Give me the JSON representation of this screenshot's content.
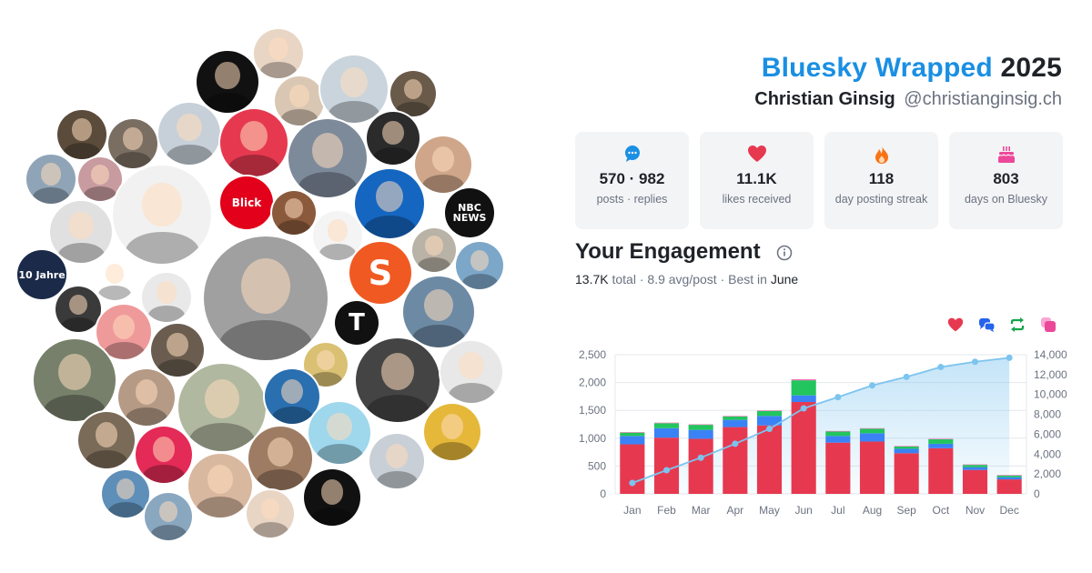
{
  "header": {
    "brand": "Bluesky Wrapped",
    "year": "2025",
    "name": "Christian Ginsig",
    "handle": "@christianginsig.ch"
  },
  "stats": [
    {
      "value": "570 · 982",
      "label": "posts · replies",
      "icon": "speech-bubble-icon",
      "color": "#1a8fe3"
    },
    {
      "value": "11.1K",
      "label": "likes received",
      "icon": "heart-icon",
      "color": "#e63950"
    },
    {
      "value": "118",
      "label": "day posting streak",
      "icon": "flame-icon",
      "color": "#f97316"
    },
    {
      "value": "803",
      "label": "days on Bluesky",
      "icon": "cake-icon",
      "color": "#ec4899"
    }
  ],
  "engagement": {
    "title": "Your Engagement",
    "total": "13.7K",
    "total_word": "total",
    "avg": "8.9 avg/post",
    "best_prefix": "Best in",
    "best_month": "June",
    "legend": [
      {
        "icon": "heart-icon",
        "color": "#e63950"
      },
      {
        "icon": "reply-icon",
        "color": "#2563eb"
      },
      {
        "icon": "repost-icon",
        "color": "#16a34a"
      },
      {
        "icon": "quote-icon",
        "color": "#ec4899"
      }
    ]
  },
  "avatar_cloud": [
    {
      "label": "",
      "color": "#e8d5c4"
    },
    {
      "label": "",
      "color": "#111111"
    },
    {
      "label": "",
      "color": "#d9c7b3"
    },
    {
      "label": "",
      "color": "#c9d4dc"
    },
    {
      "label": "",
      "color": "#6a5a4a"
    },
    {
      "label": "",
      "color": "#5b4b3b"
    },
    {
      "label": "",
      "color": "#7a6e62"
    },
    {
      "label": "",
      "color": "#c7d0d8"
    },
    {
      "label": "",
      "color": "#e63950"
    },
    {
      "label": "",
      "color": "#7d8a9a"
    },
    {
      "label": "",
      "color": "#2b2b2b"
    },
    {
      "label": "",
      "color": "#cfa68a"
    },
    {
      "label": "Blick",
      "color": "#e2001a"
    },
    {
      "label": "",
      "color": "#1566c0"
    },
    {
      "label": "NBC NEWS",
      "color": "#111111"
    },
    {
      "label": "",
      "color": "#8fa4b7"
    },
    {
      "label": "",
      "color": "#c89ba0"
    },
    {
      "label": "",
      "color": "#f1f1f1"
    },
    {
      "label": "",
      "color": "#e0e0e0"
    },
    {
      "label": "10 Jahre",
      "color": "#1b2a49"
    },
    {
      "label": "",
      "color": "#ffffff"
    },
    {
      "label": "",
      "color": "#3a3a3a"
    },
    {
      "label": "",
      "color": "#e9e9e9"
    },
    {
      "label": "",
      "color": "#8b5a3c"
    },
    {
      "label": "",
      "color": "#f4f4f4"
    },
    {
      "label": "S",
      "color": "#f05a22"
    },
    {
      "label": "T",
      "color": "#111111"
    },
    {
      "label": "",
      "color": "#b9b2a6"
    },
    {
      "label": "",
      "color": "#7da7c9"
    },
    {
      "label": "",
      "color": "#6d8aa5"
    },
    {
      "label": "",
      "color": "#a0a0a0"
    },
    {
      "label": "",
      "color": "#d9c073"
    },
    {
      "label": "",
      "color": "#ef9a9a"
    },
    {
      "label": "",
      "color": "#6a5d4f"
    },
    {
      "label": "",
      "color": "#444444"
    },
    {
      "label": "",
      "color": "#e8e8e8"
    },
    {
      "label": "",
      "color": "#77806b"
    },
    {
      "label": "",
      "color": "#b59a85"
    },
    {
      "label": "",
      "color": "#b0b8a0"
    },
    {
      "label": "",
      "color": "#2a6fb0"
    },
    {
      "label": "",
      "color": "#9fd7ec"
    },
    {
      "label": "",
      "color": "#e5b83a"
    },
    {
      "label": "",
      "color": "#7a6a58"
    },
    {
      "label": "",
      "color": "#e42a56"
    },
    {
      "label": "",
      "color": "#d9b8a0"
    },
    {
      "label": "",
      "color": "#9e7c63"
    },
    {
      "label": "",
      "color": "#5e8fb9"
    },
    {
      "label": "",
      "color": "#c8cfd6"
    },
    {
      "label": "",
      "color": "#8aa7c0"
    }
  ],
  "chart_data": {
    "type": "bar",
    "stacked": true,
    "categories": [
      "Jan",
      "Feb",
      "Mar",
      "Apr",
      "May",
      "Jun",
      "Jul",
      "Aug",
      "Sep",
      "Oct",
      "Nov",
      "Dec"
    ],
    "series": [
      {
        "color": "#e63950",
        "values": [
          890,
          1010,
          990,
          1200,
          1230,
          1650,
          920,
          940,
          730,
          820,
          430,
          260
        ]
      },
      {
        "color": "#3b82f6",
        "values": [
          150,
          170,
          160,
          130,
          170,
          120,
          120,
          150,
          80,
          80,
          50,
          40
        ]
      },
      {
        "color": "#22c55e",
        "values": [
          60,
          90,
          90,
          60,
          90,
          270,
          80,
          80,
          40,
          80,
          40,
          30
        ]
      },
      {
        "color": "#f472b6",
        "values": [
          10,
          10,
          10,
          10,
          10,
          20,
          10,
          10,
          10,
          10,
          10,
          10
        ]
      }
    ],
    "cumulative": {
      "color": "#7cc4ef",
      "values": [
        1100,
        2380,
        3640,
        5040,
        6540,
        8600,
        9730,
        10910,
        11770,
        12760,
        13290,
        13690
      ]
    },
    "y_left": {
      "ticks": [
        "0",
        "500",
        "1,000",
        "1,500",
        "2,000",
        "2,500"
      ],
      "min": 0,
      "max": 2500
    },
    "y_right": {
      "ticks": [
        "0",
        "2,000",
        "4,000",
        "6,000",
        "8,000",
        "10,000",
        "12,000",
        "14,000"
      ],
      "min": 0,
      "max": 14000
    },
    "grid": true
  }
}
